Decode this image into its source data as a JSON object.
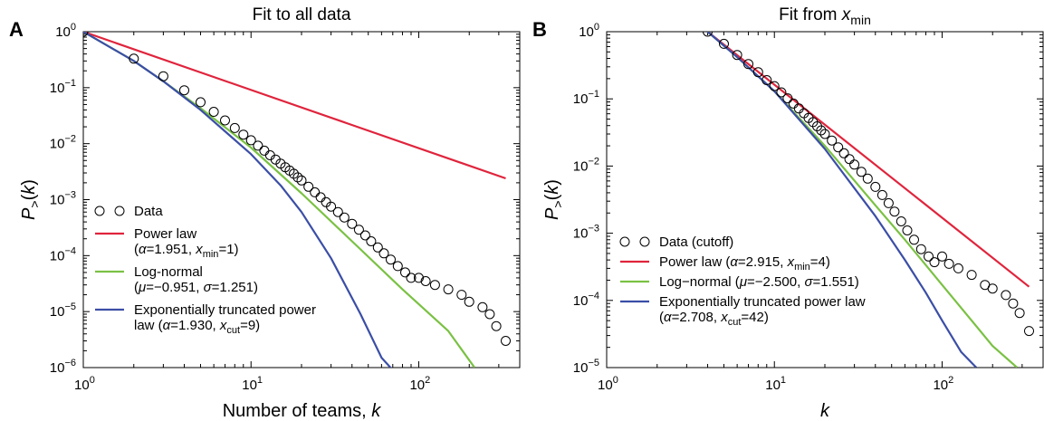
{
  "colors": {
    "power_law": "#e0243c",
    "log_normal": "#7ac143",
    "truncated": "#3b4ea6",
    "data": "#000000"
  },
  "chart_data": [
    {
      "panel_label": "A",
      "type": "scatter",
      "title": "Fit to all data",
      "xlabel": "Number of teams, k",
      "ylabel": "P>(k)",
      "xscale": "log",
      "yscale": "log",
      "xlim": [
        1,
        400
      ],
      "ylim": [
        1e-06,
        1
      ],
      "x_ticks": [
        "10^0",
        "10^1",
        "10^2"
      ],
      "y_ticks": [
        "10^0",
        "10^-1",
        "10^-2",
        "10^-3",
        "10^-4",
        "10^-5",
        "10^-6"
      ],
      "legend_position": "lower-left",
      "series": [
        {
          "name": "Data",
          "kind": "markers",
          "x": [
            1,
            2,
            3,
            4,
            5,
            6,
            7,
            8,
            9,
            10,
            11,
            12,
            13,
            14,
            15,
            16,
            17,
            18,
            19,
            20,
            22,
            24,
            26,
            28,
            30,
            33,
            36,
            40,
            44,
            48,
            52,
            57,
            62,
            68,
            75,
            83,
            90,
            100,
            110,
            125,
            150,
            180,
            200,
            240,
            265,
            290,
            330
          ],
          "y": [
            1.0,
            0.33,
            0.16,
            0.09,
            0.055,
            0.037,
            0.026,
            0.019,
            0.0145,
            0.0115,
            0.0092,
            0.0075,
            0.0062,
            0.0052,
            0.0044,
            0.0038,
            0.0033,
            0.0029,
            0.0025,
            0.0022,
            0.0017,
            0.00135,
            0.0011,
            0.0009,
            0.00075,
            0.0006,
            0.00048,
            0.00037,
            0.00029,
            0.00023,
            0.00018,
            0.00014,
            0.00011,
            8.5e-05,
            6.5e-05,
            5e-05,
            4e-05,
            4e-05,
            3.5e-05,
            3e-05,
            2.5e-05,
            2e-05,
            1.5e-05,
            1.2e-05,
            9e-06,
            5.5e-06,
            3e-06
          ]
        },
        {
          "name": "Power law",
          "params": "(α=1.951, xmin=1)",
          "kind": "line",
          "color_key": "power_law",
          "x": [
            1,
            330
          ],
          "y": [
            1,
            0.0024
          ]
        },
        {
          "name": "Log-normal",
          "params": "(μ=−0.951, σ=1.251)",
          "kind": "line",
          "color_key": "log_normal",
          "x": [
            1,
            2,
            3,
            5,
            10,
            20,
            40,
            80,
            150,
            215
          ],
          "y": [
            1,
            0.3,
            0.13,
            0.043,
            0.0085,
            0.0013,
            0.00018,
            2.5e-05,
            4.5e-06,
            1e-06
          ]
        },
        {
          "name": "Exponentially truncated power law",
          "params": "(α=1.930, xcut=9)",
          "kind": "line",
          "color_key": "truncated",
          "x": [
            1,
            2,
            3,
            5,
            10,
            15,
            20,
            30,
            45,
            60,
            70,
            75
          ],
          "y": [
            1,
            0.3,
            0.13,
            0.04,
            0.0065,
            0.0018,
            0.0006,
            9e-05,
            9e-06,
            1.5e-06,
            9e-07,
            6e-07
          ]
        }
      ],
      "legend": [
        {
          "kind": "markers",
          "lines": [
            "Data"
          ]
        },
        {
          "kind": "line",
          "color_key": "power_law",
          "lines": [
            "Power law",
            "(α=1.951, xmin=1)"
          ]
        },
        {
          "kind": "line",
          "color_key": "log_normal",
          "lines": [
            "Log-normal",
            "(μ=−0.951, σ=1.251)"
          ]
        },
        {
          "kind": "line",
          "color_key": "truncated",
          "lines": [
            "Exponentially truncated power",
            "law (α=1.930, xcut=9)"
          ]
        }
      ]
    },
    {
      "panel_label": "B",
      "type": "scatter",
      "title": "Fit from xmin",
      "xlabel": "k",
      "ylabel": "P>(k)",
      "xscale": "log",
      "yscale": "log",
      "xlim": [
        1,
        400
      ],
      "ylim": [
        1e-05,
        1
      ],
      "x_ticks": [
        "10^0",
        "10^1",
        "10^2"
      ],
      "y_ticks": [
        "10^0",
        "10^-1",
        "10^-2",
        "10^-3",
        "10^-4",
        "10^-5"
      ],
      "legend_position": "lower-left",
      "series": [
        {
          "name": "Data (cutoff)",
          "kind": "markers",
          "x": [
            4,
            5,
            6,
            7,
            8,
            9,
            10,
            11,
            12,
            13,
            14,
            15,
            16,
            17,
            18,
            19,
            20,
            22,
            24,
            26,
            28,
            30,
            33,
            36,
            40,
            44,
            48,
            52,
            57,
            62,
            68,
            75,
            83,
            90,
            100,
            110,
            125,
            150,
            180,
            200,
            240,
            265,
            290,
            330
          ],
          "y": [
            1.0,
            0.66,
            0.45,
            0.33,
            0.25,
            0.19,
            0.155,
            0.125,
            0.102,
            0.085,
            0.072,
            0.061,
            0.052,
            0.045,
            0.039,
            0.034,
            0.03,
            0.024,
            0.019,
            0.0155,
            0.0127,
            0.0105,
            0.0082,
            0.0065,
            0.0049,
            0.0037,
            0.0028,
            0.0021,
            0.0015,
            0.0011,
            0.0008,
            0.00058,
            0.00045,
            0.00037,
            0.00045,
            0.00035,
            0.0003,
            0.00024,
            0.00017,
            0.00015,
            0.00012,
            9e-05,
            6.5e-05,
            3.5e-05
          ]
        },
        {
          "name": "Power law",
          "params": "(α=2.915, xmin=4)",
          "kind": "line",
          "color_key": "power_law",
          "x": [
            4,
            330
          ],
          "y": [
            1,
            0.00016
          ]
        },
        {
          "name": "Log−normal",
          "params": "(μ=−2.500, σ=1.551)",
          "kind": "line",
          "color_key": "log_normal",
          "x": [
            4,
            6,
            10,
            20,
            40,
            60,
            100,
            150,
            200,
            280
          ],
          "y": [
            1,
            0.42,
            0.13,
            0.02,
            0.0026,
            0.0008,
            0.00017,
            5e-05,
            2.1e-05,
            1e-05
          ]
        },
        {
          "name": "Exponentially truncated power law",
          "params": "(α=2.708, xcut=42)",
          "kind": "line",
          "color_key": "truncated",
          "x": [
            4,
            6,
            10,
            20,
            40,
            60,
            80,
            100,
            130,
            160
          ],
          "y": [
            1,
            0.42,
            0.13,
            0.018,
            0.0018,
            0.0004,
            0.00013,
            5e-05,
            1.7e-05,
            1e-05
          ]
        }
      ],
      "legend": [
        {
          "kind": "markers",
          "lines": [
            "Data (cutoff)"
          ]
        },
        {
          "kind": "line",
          "color_key": "power_law",
          "lines": [
            "Power law (α=2.915, xmin=4)"
          ]
        },
        {
          "kind": "line",
          "color_key": "log_normal",
          "lines": [
            "Log−normal (μ=−2.500, σ=1.551)"
          ]
        },
        {
          "kind": "line",
          "color_key": "truncated",
          "lines": [
            "Exponentially truncated power law",
            "(α=2.708, xcut=42)"
          ]
        }
      ]
    }
  ]
}
